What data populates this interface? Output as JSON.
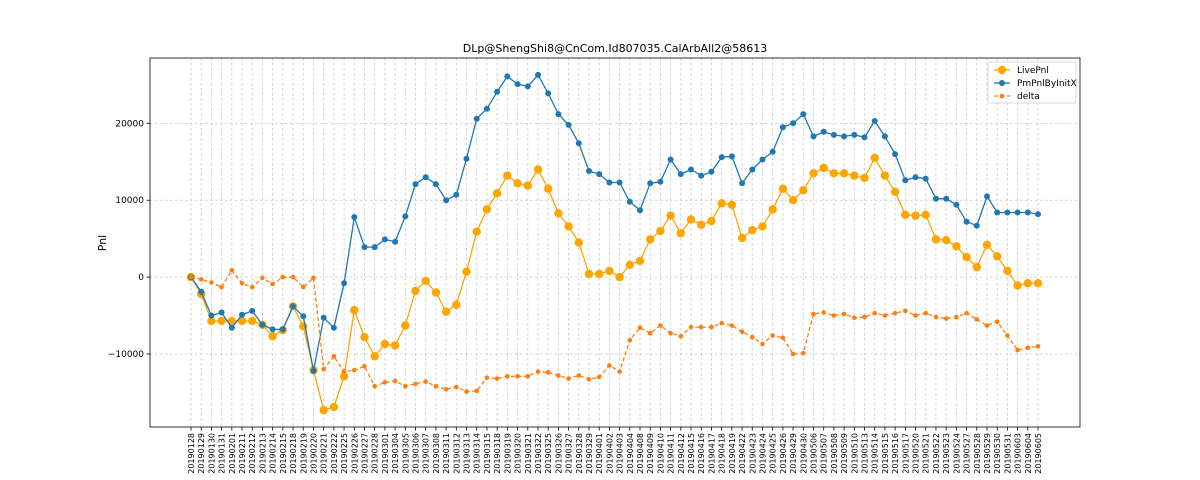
{
  "chart_data": {
    "type": "line",
    "title": "DLp@ShengShi8@CnCom.Id807035.CalArbAll2@58613",
    "xlabel": "",
    "ylabel": "Pnl",
    "ylim": [
      -19500,
      28500
    ],
    "yticks": [
      -10000,
      0,
      10000,
      20000
    ],
    "ytick_labels": [
      "−10000",
      "0",
      "10000",
      "20000"
    ],
    "grid": true,
    "legend_position": "top-right",
    "categories": [
      "20190128",
      "20190129",
      "20190130",
      "20190131",
      "20190201",
      "20190211",
      "20190212",
      "20190213",
      "20190214",
      "20190215",
      "20190218",
      "20190219",
      "20190220",
      "20190221",
      "20190222",
      "20190225",
      "20190226",
      "20190227",
      "20190228",
      "20190301",
      "20190304",
      "20190305",
      "20190306",
      "20190307",
      "20190308",
      "20190311",
      "20190312",
      "20190313",
      "20190314",
      "20190315",
      "20190318",
      "20190319",
      "20190320",
      "20190321",
      "20190322",
      "20190325",
      "20190326",
      "20190327",
      "20190328",
      "20190329",
      "20190401",
      "20190402",
      "20190403",
      "20190404",
      "20190408",
      "20190409",
      "20190410",
      "20190411",
      "20190412",
      "20190415",
      "20190416",
      "20190417",
      "20190418",
      "20190419",
      "20190422",
      "20190423",
      "20190424",
      "20190425",
      "20190426",
      "20190429",
      "20190430",
      "20190506",
      "20190507",
      "20190508",
      "20190509",
      "20190510",
      "20190513",
      "20190514",
      "20190515",
      "20190516",
      "20190517",
      "20190520",
      "20190521",
      "20190522",
      "20190523",
      "20190524",
      "20190527",
      "20190528",
      "20190529",
      "20190530",
      "20190531",
      "20190603",
      "20190604",
      "20190605"
    ],
    "series": [
      {
        "name": "LivePnl",
        "color": "#ffa500",
        "style": "solid",
        "marker_size": 4.2,
        "values": [
          0,
          -2200,
          -5700,
          -5700,
          -5700,
          -5700,
          -5700,
          -6200,
          -7700,
          -6900,
          -3800,
          -6400,
          -12100,
          -17300,
          -16900,
          -12900,
          -4300,
          -7800,
          -10300,
          -8700,
          -8900,
          -6300,
          -1800,
          -500,
          -2000,
          -4500,
          -3600,
          700,
          5900,
          8800,
          10900,
          13200,
          12200,
          11900,
          14000,
          11500,
          8300,
          6600,
          4500,
          400,
          400,
          800,
          0,
          1600,
          2100,
          4900,
          6000,
          8000,
          5700,
          7500,
          6800,
          7300,
          9600,
          9400,
          5100,
          6100,
          6600,
          8800,
          11500,
          10000,
          11300,
          13500,
          14200,
          13500,
          13500,
          13200,
          12900,
          15500,
          13200,
          11100,
          8100,
          8000,
          8100,
          4900,
          4800,
          4000,
          2600,
          1300,
          4200,
          2700,
          800,
          -1100,
          -800,
          -800
        ]
      },
      {
        "name": "PmPnlByInitX",
        "color": "#1f77b4",
        "style": "solid",
        "marker_size": 3,
        "values": [
          0,
          -1900,
          -5000,
          -4600,
          -6600,
          -4900,
          -4400,
          -6200,
          -6800,
          -6800,
          -3800,
          -5100,
          -12200,
          -5300,
          -6600,
          -800,
          7800,
          3900,
          3900,
          4900,
          4600,
          7900,
          12100,
          13000,
          12100,
          10000,
          10700,
          15400,
          20600,
          21900,
          24100,
          26100,
          25100,
          24800,
          26300,
          23900,
          21200,
          19800,
          17400,
          13800,
          13400,
          12300,
          12300,
          9800,
          8700,
          12200,
          12400,
          15300,
          13400,
          14000,
          13200,
          13700,
          15600,
          15700,
          12200,
          14000,
          15300,
          16300,
          19500,
          20000,
          21200,
          18300,
          18900,
          18500,
          18300,
          18500,
          18200,
          20300,
          18300,
          16000,
          12600,
          13000,
          12800,
          10200,
          10200,
          9400,
          7200,
          6700,
          10500,
          8400,
          8400,
          8400,
          8400,
          8200
        ]
      },
      {
        "name": "delta",
        "color": "#ff7f0e",
        "style": "dashed",
        "marker_size": 2.3,
        "values": [
          0,
          -300,
          -700,
          -1300,
          900,
          -800,
          -1300,
          -100,
          -900,
          0,
          0,
          -1300,
          -100,
          -12000,
          -10300,
          -12300,
          -12100,
          -11600,
          -14200,
          -13700,
          -13500,
          -14200,
          -13900,
          -13600,
          -14200,
          -14600,
          -14300,
          -14900,
          -14800,
          -13100,
          -13200,
          -12900,
          -12900,
          -12900,
          -12300,
          -12400,
          -12800,
          -13200,
          -12800,
          -13300,
          -13000,
          -11500,
          -12300,
          -8200,
          -6600,
          -7300,
          -6300,
          -7300,
          -7700,
          -6500,
          -6500,
          -6500,
          -6000,
          -6300,
          -7100,
          -7800,
          -8700,
          -7600,
          -7900,
          -10000,
          -9900,
          -4800,
          -4600,
          -5000,
          -4800,
          -5300,
          -5200,
          -4700,
          -5000,
          -4700,
          -4400,
          -5000,
          -4700,
          -5200,
          -5400,
          -5200,
          -4700,
          -5500,
          -6300,
          -5800,
          -7600,
          -9500,
          -9200,
          -9000
        ]
      }
    ]
  }
}
